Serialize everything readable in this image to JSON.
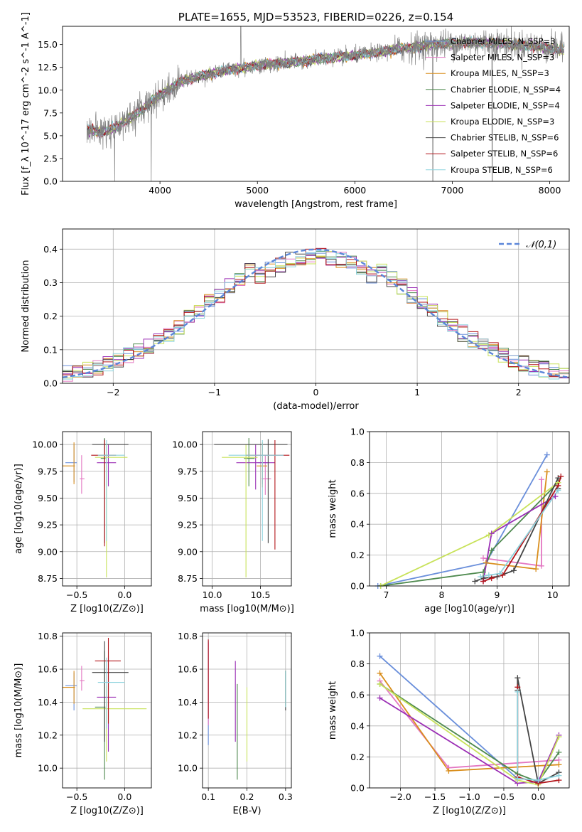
{
  "chart_data": [
    {
      "id": "spectrum",
      "type": "line",
      "title": "PLATE=1655, MJD=53523, FIBERID=0226, z=0.154",
      "xlabel": "wavelength [Angstrom, rest frame]",
      "ylabel": "Flux [f_λ 10^-17 erg cm^-2 s^-1 A^-1]",
      "xlim": [
        3000,
        8200
      ],
      "ylim": [
        0,
        17
      ],
      "xticks": [
        4000,
        5000,
        6000,
        7000,
        8000
      ],
      "yticks": [
        0.0,
        2.5,
        5.0,
        7.5,
        10.0,
        12.5,
        15.0
      ],
      "grid": false,
      "legend_position": "right",
      "legend": [
        {
          "label": "Chabrier MILES, N_SSP=3",
          "color": "#6a8fdb"
        },
        {
          "label": "Salpeter MILES, N_SSP=3",
          "color": "#e377c2"
        },
        {
          "label": "Kroupa MILES, N_SSP=3",
          "color": "#d98e1c"
        },
        {
          "label": "Chabrier ELODIE, N_SSP=4",
          "color": "#4f8a4f"
        },
        {
          "label": "Salpeter ELODIE, N_SSP=4",
          "color": "#9b2fb5"
        },
        {
          "label": "Kroupa ELODIE, N_SSP=3",
          "color": "#c8e25a"
        },
        {
          "label": "Chabrier STELIB, N_SSP=6",
          "color": "#444444"
        },
        {
          "label": "Salpeter STELIB, N_SSP=6",
          "color": "#b3161b"
        },
        {
          "label": "Kroupa STELIB, N_SSP=6",
          "color": "#8dd3dd"
        }
      ],
      "data_color": "#808080",
      "continuum": {
        "x": [
          3250,
          3400,
          3500,
          3600,
          3700,
          3800,
          3900,
          4000,
          4100,
          4200,
          4300,
          4400,
          4500,
          4600,
          4700,
          4800,
          4900,
          5000,
          5200,
          5400,
          5600,
          5800,
          6000,
          6200,
          6400,
          6600,
          6800,
          7000,
          7200,
          7400,
          7600,
          7800,
          8000,
          8150
        ],
        "y": [
          5.7,
          5.4,
          5.7,
          6.3,
          7.0,
          7.7,
          8.7,
          9.4,
          10.1,
          10.9,
          11.2,
          11.5,
          11.7,
          12.0,
          12.2,
          12.4,
          12.5,
          12.7,
          12.9,
          13.1,
          13.4,
          13.6,
          13.8,
          14.1,
          14.4,
          14.7,
          15.0,
          15.1,
          15.2,
          15.2,
          15.0,
          14.9,
          14.6,
          14.4
        ]
      },
      "dips": [
        [
          3535,
          0.0
        ],
        [
          3910,
          0.0
        ],
        [
          4830,
          17.0
        ],
        [
          6800,
          0.0
        ],
        [
          7410,
          0.0
        ]
      ]
    },
    {
      "id": "residuals",
      "type": "histogram",
      "xlabel": "(data-model)/error",
      "ylabel": "Normed distribution",
      "xlim": [
        -2.5,
        2.5
      ],
      "ylim": [
        0,
        0.46
      ],
      "xticks": [
        -2,
        -1,
        0,
        1,
        2
      ],
      "yticks": [
        0.0,
        0.1,
        0.2,
        0.3,
        0.4
      ],
      "grid": true,
      "legend": [
        {
          "label": "𝒩(0,1)",
          "color": "#5b86d9",
          "style": "dashed"
        }
      ],
      "bin_width": 0.1,
      "series_colors": [
        "#6a8fdb",
        "#e377c2",
        "#d98e1c",
        "#4f8a4f",
        "#9b2fb5",
        "#c8e25a",
        "#444444",
        "#b3161b",
        "#8dd3dd"
      ]
    },
    {
      "id": "age-vs-Z",
      "type": "errorbar",
      "xlabel": "Z [log10(Z/Z⊙)]",
      "ylabel": "age  [log10(age/yr)]",
      "xlim": [
        -0.65,
        0.28
      ],
      "ylim": [
        8.68,
        10.12
      ],
      "xticks": [
        -0.5,
        0.0
      ],
      "yticks": [
        8.75,
        9.0,
        9.25,
        9.5,
        9.75,
        10.0
      ],
      "grid": true,
      "points": [
        {
          "x": -0.53,
          "y": 9.83,
          "xerr": [
            0.09,
            0.03
          ],
          "yerr": [
            0.18,
            0.17
          ],
          "color": "#6a8fdb"
        },
        {
          "x": -0.45,
          "y": 9.68,
          "xerr": [
            0.02,
            0.03
          ],
          "yerr": [
            0.14,
            0.22
          ],
          "color": "#e377c2"
        },
        {
          "x": -0.53,
          "y": 9.8,
          "xerr": [
            0.12,
            0.01
          ],
          "yerr": [
            0.17,
            0.22
          ],
          "color": "#d98e1c"
        },
        {
          "x": -0.21,
          "y": 9.87,
          "xerr": [
            0.04,
            0.01
          ],
          "yerr": [
            0.26,
            0.19
          ],
          "color": "#4f8a4f"
        },
        {
          "x": -0.17,
          "y": 9.83,
          "xerr": [
            0.12,
            0.08
          ],
          "yerr": [
            0.22,
            0.17
          ],
          "color": "#9b2fb5"
        },
        {
          "x": -0.19,
          "y": 9.88,
          "xerr": [
            0.12,
            0.22
          ],
          "yerr": [
            1.12,
            0.12
          ],
          "color": "#c8e25a"
        },
        {
          "x": -0.21,
          "y": 10.0,
          "xerr": [
            0.13,
            0.25
          ],
          "yerr": [
            0.92,
            0.05
          ],
          "color": "#444444"
        },
        {
          "x": -0.21,
          "y": 9.9,
          "xerr": [
            0.14,
            0.12
          ],
          "yerr": [
            0.85,
            0.14
          ],
          "color": "#b3161b"
        },
        {
          "x": -0.19,
          "y": 9.9,
          "xerr": [
            0.09,
            0.19
          ],
          "yerr": [
            0.8,
            0.14
          ],
          "color": "#8dd3dd"
        }
      ]
    },
    {
      "id": "age-vs-mass",
      "type": "errorbar",
      "xlabel": "mass [log10(M/M⊙)]",
      "ylabel": "",
      "xlim": [
        9.9,
        10.82
      ],
      "ylim": [
        8.68,
        10.12
      ],
      "xticks": [
        10.0,
        10.5
      ],
      "yticks": [
        8.75,
        9.0,
        9.25,
        9.5,
        9.75,
        10.0
      ],
      "grid": true,
      "points": [
        {
          "x": 10.52,
          "y": 9.83,
          "xerr": [
            0.05,
            0.06
          ],
          "yerr": [
            0.2,
            0.17
          ],
          "color": "#6a8fdb"
        },
        {
          "x": 10.55,
          "y": 9.68,
          "xerr": [
            0.04,
            0.06
          ],
          "yerr": [
            0.15,
            0.22
          ],
          "color": "#e377c2"
        },
        {
          "x": 10.52,
          "y": 9.8,
          "xerr": [
            0.06,
            0.05
          ],
          "yerr": [
            0.2,
            0.22
          ],
          "color": "#d98e1c"
        },
        {
          "x": 10.38,
          "y": 9.87,
          "xerr": [
            0.05,
            0.06
          ],
          "yerr": [
            0.26,
            0.19
          ],
          "color": "#4f8a4f"
        },
        {
          "x": 10.45,
          "y": 9.83,
          "xerr": [
            0.2,
            0.2
          ],
          "yerr": [
            0.25,
            0.17
          ],
          "color": "#9b2fb5"
        },
        {
          "x": 10.35,
          "y": 9.88,
          "xerr": [
            0.25,
            0.12
          ],
          "yerr": [
            1.12,
            0.12
          ],
          "color": "#c8e25a"
        },
        {
          "x": 10.58,
          "y": 10.0,
          "xerr": [
            0.56,
            0.2
          ],
          "yerr": [
            0.92,
            0.05
          ],
          "color": "#444444"
        },
        {
          "x": 10.65,
          "y": 9.9,
          "xerr": [
            0.3,
            0.15
          ],
          "yerr": [
            0.88,
            0.14
          ],
          "color": "#b3161b"
        },
        {
          "x": 10.52,
          "y": 9.9,
          "xerr": [
            0.35,
            0.22
          ],
          "yerr": [
            0.8,
            0.14
          ],
          "color": "#8dd3dd"
        }
      ]
    },
    {
      "id": "weight-vs-age",
      "type": "line",
      "xlabel": "age  [log10(age/yr)]",
      "ylabel": "mass weight",
      "xlim": [
        6.7,
        10.3
      ],
      "ylim": [
        0,
        1.0
      ],
      "xticks": [
        7,
        8,
        9,
        10
      ],
      "yticks": [
        0.0,
        0.2,
        0.4,
        0.6,
        0.8,
        1.0
      ],
      "grid": true,
      "series": [
        {
          "color": "#6a8fdb",
          "x": [
            6.85,
            8.8,
            9.9
          ],
          "y": [
            0.0,
            0.15,
            0.85
          ]
        },
        {
          "color": "#e377c2",
          "x": [
            8.75,
            9.8,
            9.8
          ],
          "y": [
            0.18,
            0.13,
            0.69
          ]
        },
        {
          "color": "#d98e1c",
          "x": [
            8.8,
            9.7,
            9.9
          ],
          "y": [
            0.15,
            0.11,
            0.74
          ]
        },
        {
          "color": "#4f8a4f",
          "x": [
            6.9,
            8.75,
            8.9,
            10.1
          ],
          "y": [
            0.0,
            0.09,
            0.23,
            0.67
          ]
        },
        {
          "color": "#9b2fb5",
          "x": [
            8.75,
            8.9,
            10.05
          ],
          "y": [
            0.03,
            0.34,
            0.58
          ]
        },
        {
          "color": "#c8e25a",
          "x": [
            6.9,
            8.85,
            10.1
          ],
          "y": [
            0.0,
            0.33,
            0.67
          ]
        },
        {
          "color": "#444444",
          "x": [
            8.6,
            8.75,
            9.0,
            9.3,
            10.1,
            10.1
          ],
          "y": [
            0.03,
            0.05,
            0.06,
            0.1,
            0.7,
            0.63
          ]
        },
        {
          "color": "#b3161b",
          "x": [
            8.75,
            8.9,
            9.1,
            10.1,
            10.15
          ],
          "y": [
            0.03,
            0.05,
            0.07,
            0.65,
            0.71
          ]
        },
        {
          "color": "#8dd3dd",
          "x": [
            8.7,
            8.85,
            9.05,
            10.1
          ],
          "y": [
            0.06,
            0.07,
            0.08,
            0.62
          ]
        }
      ]
    },
    {
      "id": "mass-vs-Z",
      "type": "errorbar",
      "xlabel": "Z [log10(Z/Z⊙)]",
      "ylabel": "mass [log10(M/M⊙)]",
      "xlim": [
        -0.65,
        0.28
      ],
      "ylim": [
        9.88,
        10.82
      ],
      "xticks": [
        -0.5,
        0.0
      ],
      "yticks": [
        10.0,
        10.2,
        10.4,
        10.6,
        10.8
      ],
      "grid": true,
      "points": [
        {
          "x": -0.53,
          "y": 10.5,
          "xerr": [
            0.09,
            0.03
          ],
          "yerr": [
            0.15,
            0.08
          ],
          "color": "#6a8fdb"
        },
        {
          "x": -0.45,
          "y": 10.53,
          "xerr": [
            0.02,
            0.03
          ],
          "yerr": [
            0.06,
            0.09
          ],
          "color": "#e377c2"
        },
        {
          "x": -0.53,
          "y": 10.49,
          "xerr": [
            0.12,
            0.01
          ],
          "yerr": [
            0.1,
            0.1
          ],
          "color": "#d98e1c"
        },
        {
          "x": -0.21,
          "y": 10.37,
          "xerr": [
            0.1,
            0.01
          ],
          "yerr": [
            0.44,
            0.34
          ],
          "color": "#4f8a4f"
        },
        {
          "x": -0.17,
          "y": 10.43,
          "xerr": [
            0.12,
            0.08
          ],
          "yerr": [
            0.33,
            0.25
          ],
          "color": "#9b2fb5"
        },
        {
          "x": -0.19,
          "y": 10.36,
          "xerr": [
            0.25,
            0.42
          ],
          "yerr": [
            0.32,
            0.14
          ],
          "color": "#c8e25a"
        },
        {
          "x": -0.21,
          "y": 10.58,
          "xerr": [
            0.13,
            0.25
          ],
          "yerr": [
            0.42,
            0.19
          ],
          "color": "#444444"
        },
        {
          "x": -0.17,
          "y": 10.65,
          "xerr": [
            0.14,
            0.13
          ],
          "yerr": [
            0.38,
            0.14
          ],
          "color": "#b3161b"
        },
        {
          "x": -0.19,
          "y": 10.52,
          "xerr": [
            0.09,
            0.19
          ],
          "yerr": [
            0.28,
            0.15
          ],
          "color": "#8dd3dd"
        }
      ]
    },
    {
      "id": "mass-vs-EBV",
      "type": "errorbar",
      "xlabel": "E(B-V)",
      "ylabel": "",
      "xlim": [
        0.085,
        0.315
      ],
      "ylim": [
        9.88,
        10.82
      ],
      "xticks": [
        0.1,
        0.2,
        0.3
      ],
      "yticks": [
        10.0,
        10.2,
        10.4,
        10.6,
        10.8
      ],
      "grid": true,
      "points": [
        {
          "x": 0.1,
          "y": 10.44,
          "xerr": [
            0.0,
            0.0
          ],
          "yerr": [
            0.3,
            0.33
          ],
          "color": "#6a8fdb"
        },
        {
          "x": 0.1,
          "y": 10.5,
          "xerr": [
            0.0,
            0.0
          ],
          "yerr": [
            0.24,
            0.26
          ],
          "color": "#e377c2"
        },
        {
          "x": 0.3,
          "y": 10.48,
          "xerr": [
            0.0,
            0.0
          ],
          "yerr": [
            0.1,
            0.11
          ],
          "color": "#d98e1c"
        },
        {
          "x": 0.175,
          "y": 10.2,
          "xerr": [
            0.0,
            0.0
          ],
          "yerr": [
            0.27,
            0.31
          ],
          "color": "#4f8a4f"
        },
        {
          "x": 0.17,
          "y": 10.38,
          "xerr": [
            0.0,
            0.0
          ],
          "yerr": [
            0.22,
            0.27
          ],
          "color": "#9b2fb5"
        },
        {
          "x": 0.2,
          "y": 10.29,
          "xerr": [
            0.0,
            0.0
          ],
          "yerr": [
            0.25,
            0.2
          ],
          "color": "#c8e25a"
        },
        {
          "x": 0.3,
          "y": 10.45,
          "xerr": [
            0.0,
            0.0
          ],
          "yerr": [
            0.1,
            0.14
          ],
          "color": "#444444"
        },
        {
          "x": 0.1,
          "y": 10.55,
          "xerr": [
            0.0,
            0.0
          ],
          "yerr": [
            0.25,
            0.23
          ],
          "color": "#b3161b"
        },
        {
          "x": 0.3,
          "y": 10.47,
          "xerr": [
            0.0,
            0.0
          ],
          "yerr": [
            0.1,
            0.12
          ],
          "color": "#8dd3dd"
        }
      ]
    },
    {
      "id": "weight-vs-Z",
      "type": "line",
      "xlabel": "Z [log10(Z/Z⊙)]",
      "ylabel": "mass weight",
      "xlim": [
        -2.45,
        0.45
      ],
      "ylim": [
        0,
        1.0
      ],
      "xticks": [
        -2.0,
        -1.5,
        -1.0,
        -0.5,
        0.0
      ],
      "yticks": [
        0.0,
        0.2,
        0.4,
        0.6,
        0.8,
        1.0
      ],
      "grid": true,
      "series": [
        {
          "color": "#6a8fdb",
          "x": [
            -2.3,
            -0.3,
            0.0
          ],
          "y": [
            0.85,
            0.06,
            0.05
          ]
        },
        {
          "color": "#e377c2",
          "x": [
            -2.3,
            -1.3,
            0.3
          ],
          "y": [
            0.69,
            0.13,
            0.18
          ]
        },
        {
          "color": "#d98e1c",
          "x": [
            -2.3,
            -1.3,
            0.3
          ],
          "y": [
            0.74,
            0.11,
            0.15
          ]
        },
        {
          "color": "#4f8a4f",
          "x": [
            -2.3,
            -0.3,
            0.0,
            0.3
          ],
          "y": [
            0.67,
            0.09,
            0.04,
            0.23
          ]
        },
        {
          "color": "#9b2fb5",
          "x": [
            -2.3,
            -0.3,
            0.0,
            0.3
          ],
          "y": [
            0.58,
            0.03,
            0.04,
            0.34
          ]
        },
        {
          "color": "#c8e25a",
          "x": [
            -2.3,
            -0.3,
            0.0,
            0.3
          ],
          "y": [
            0.67,
            0.05,
            0.02,
            0.33
          ]
        },
        {
          "color": "#444444",
          "x": [
            -0.3,
            -0.3,
            0.0,
            0.3
          ],
          "y": [
            0.63,
            0.71,
            0.03,
            0.1
          ]
        },
        {
          "color": "#b3161b",
          "x": [
            -0.3,
            -0.3,
            0.0,
            0.3
          ],
          "y": [
            0.65,
            0.07,
            0.03,
            0.05
          ]
        },
        {
          "color": "#8dd3dd",
          "x": [
            -0.3,
            -0.3,
            0.0,
            0.3
          ],
          "y": [
            0.62,
            0.06,
            0.05,
            0.08
          ]
        }
      ]
    }
  ]
}
